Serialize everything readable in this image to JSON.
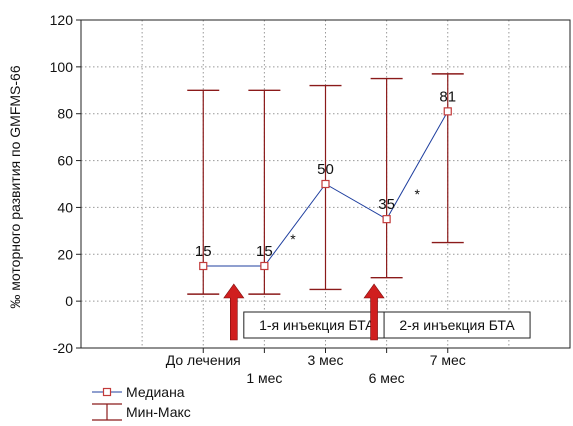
{
  "chart_data": {
    "type": "line",
    "ylabel": "‰ моторного развития по GMFMS-66",
    "ylim": [
      -20,
      120
    ],
    "y_ticks": [
      -20,
      0,
      20,
      40,
      60,
      80,
      100,
      120
    ],
    "grid": true,
    "x_ticks": [
      {
        "label": "До лечения",
        "row": 1
      },
      {
        "label": "1 мес",
        "row": 2
      },
      {
        "label": "3 мес",
        "row": 1
      },
      {
        "label": "6 мес",
        "row": 2
      },
      {
        "label": "7 мес",
        "row": 1
      }
    ],
    "series": [
      {
        "name": "Медиана",
        "color": "#1f3f9f",
        "values": [
          15,
          15,
          50,
          35,
          81
        ]
      },
      {
        "name": "Мин-Макс",
        "color": "#8b1a1a",
        "min": [
          3,
          3,
          5,
          10,
          25
        ],
        "max": [
          90,
          90,
          92,
          95,
          97
        ]
      }
    ],
    "data_labels": [
      "15",
      "15",
      "50",
      "35",
      "81"
    ],
    "significance": [
      "*",
      "*"
    ],
    "annotations": [
      {
        "label": "1-я инъекция БТА",
        "color": "#d01f1f"
      },
      {
        "label": "2-я инъекция БТА",
        "color": "#d01f1f"
      }
    ],
    "legend": {
      "placement": "bottom-left",
      "median": "Медиана",
      "range": "Мин-Макс"
    }
  }
}
